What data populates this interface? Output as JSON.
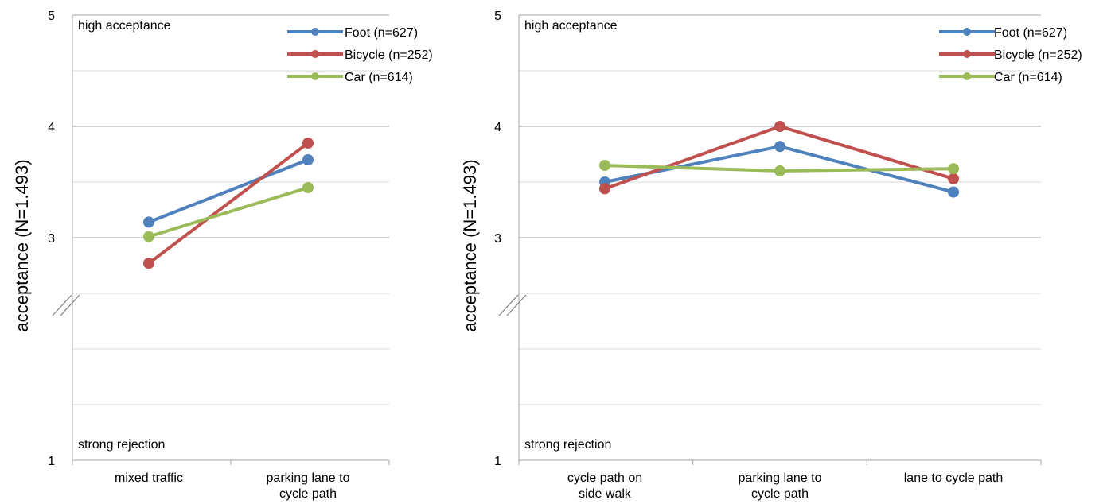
{
  "chart_data": [
    {
      "type": "line",
      "ylabel": "acceptance (N=1.493)",
      "ylim": [
        1,
        5
      ],
      "yticks": [
        "1",
        "3",
        "4",
        "5"
      ],
      "axis_break": true,
      "grid": true,
      "legend_position": "top-right",
      "top_note": "high acceptance",
      "bottom_note": "strong rejection",
      "categories": [
        [
          "mixed traffic"
        ],
        [
          "parking lane to",
          "cycle path"
        ]
      ],
      "series": [
        {
          "name": "Foot (n=627)",
          "color": "#4f81bd",
          "values": [
            3.14,
            3.7
          ]
        },
        {
          "name": "Bicycle (n=252)",
          "color": "#c0504d",
          "values": [
            2.77,
            3.85
          ]
        },
        {
          "name": "Car (n=614)",
          "color": "#9bbb59",
          "values": [
            3.01,
            3.45
          ]
        }
      ]
    },
    {
      "type": "line",
      "ylabel": "acceptance (N=1.493)",
      "ylim": [
        1,
        5
      ],
      "yticks": [
        "1",
        "3",
        "4",
        "5"
      ],
      "axis_break": true,
      "grid": true,
      "legend_position": "top-right",
      "top_note": "high acceptance",
      "bottom_note": "strong rejection",
      "categories": [
        [
          "cycle path on",
          "side walk"
        ],
        [
          "parking lane to",
          "cycle path"
        ],
        [
          "lane to cycle path"
        ]
      ],
      "series": [
        {
          "name": "Foot (n=627)",
          "color": "#4f81bd",
          "values": [
            3.5,
            3.82,
            3.41
          ]
        },
        {
          "name": "Bicycle (n=252)",
          "color": "#c0504d",
          "values": [
            3.44,
            4.0,
            3.53
          ]
        },
        {
          "name": "Car (n=614)",
          "color": "#9bbb59",
          "values": [
            3.65,
            3.6,
            3.62
          ]
        }
      ]
    }
  ]
}
